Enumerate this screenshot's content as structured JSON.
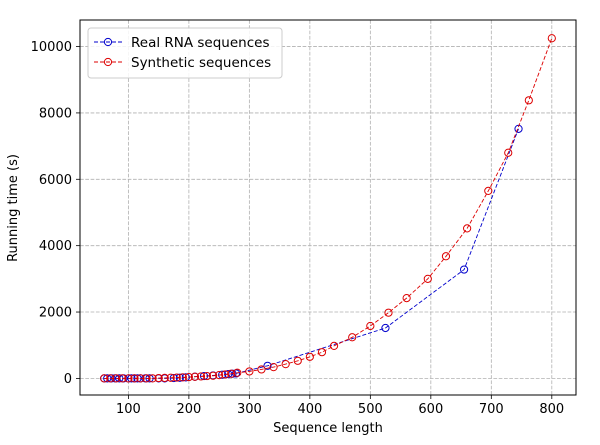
{
  "chart_data": {
    "type": "line",
    "title": "",
    "xlabel": "Sequence length",
    "ylabel": "Running time (s)",
    "xlim": [
      20,
      840
    ],
    "ylim": [
      -500,
      10800
    ],
    "xticks": [
      100,
      200,
      300,
      400,
      500,
      600,
      700,
      800
    ],
    "yticks": [
      0,
      2000,
      4000,
      6000,
      8000,
      10000
    ],
    "grid": true,
    "grid_style": "dashed",
    "legend_position": "top-left",
    "series": [
      {
        "name": "Real RNA sequences",
        "color": "#0000cc",
        "marker": "open-circle",
        "line_style": "dashed",
        "x": [
          60,
          65,
          72,
          78,
          85,
          92,
          100,
          105,
          110,
          115,
          120,
          128,
          135,
          150,
          160,
          175,
          185,
          195,
          210,
          225,
          240,
          255,
          265,
          272,
          278,
          330,
          525,
          655,
          745
        ],
        "y": [
          0,
          0,
          0,
          0,
          0,
          0,
          0,
          0,
          0,
          0,
          0,
          0,
          0,
          0,
          0,
          10,
          20,
          30,
          50,
          70,
          90,
          110,
          130,
          140,
          150,
          380,
          1520,
          3280,
          7520
        ]
      },
      {
        "name": "Synthetic sequences",
        "color": "#dd0000",
        "marker": "open-circle",
        "line_style": "dashed",
        "x": [
          60,
          70,
          80,
          90,
          100,
          110,
          120,
          130,
          140,
          150,
          160,
          170,
          180,
          190,
          200,
          210,
          220,
          230,
          240,
          250,
          260,
          270,
          280,
          300,
          320,
          340,
          360,
          380,
          400,
          420,
          440,
          470,
          500,
          530,
          560,
          595,
          625,
          660,
          695,
          728,
          762,
          800
        ],
        "y": [
          0,
          0,
          0,
          0,
          0,
          0,
          0,
          0,
          0,
          10,
          15,
          20,
          25,
          30,
          40,
          50,
          60,
          70,
          80,
          100,
          120,
          140,
          170,
          210,
          270,
          340,
          430,
          530,
          650,
          790,
          980,
          1240,
          1580,
          1980,
          2420,
          3000,
          3680,
          4520,
          5650,
          6800,
          8380,
          10250
        ]
      }
    ]
  }
}
